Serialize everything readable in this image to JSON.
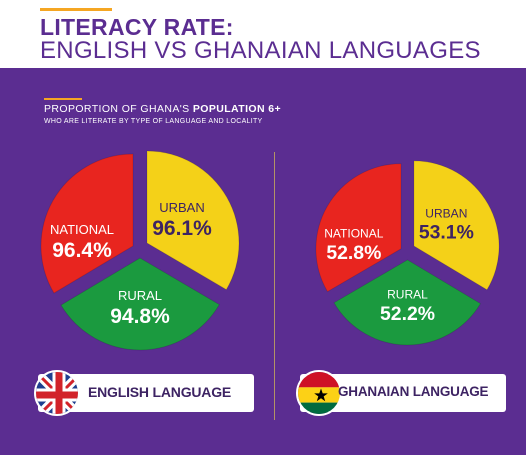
{
  "header": {
    "title_line1": "LITERACY RATE:",
    "title_line2": "ENGLISH VS GHANAIAN LANGUAGES"
  },
  "subtitle": {
    "line1_prefix": "PROPORTION OF GHANA'S",
    "line1_bold": "POPULATION 6+",
    "line2": "WHO ARE LITERATE BY TYPE OF LANGUAGE AND LOCALITY"
  },
  "colors": {
    "background": "#5b2d91",
    "header_text": "#5b2d91",
    "urban": "#f4d118",
    "national": "#e8251f",
    "rural": "#1b9a3f",
    "accent": "#f5a623"
  },
  "icons": [
    "uk-flag-icon",
    "ghana-flag-icon"
  ],
  "chart_data": [
    {
      "type": "pie",
      "title": "ENGLISH LANGUAGE",
      "slices": [
        {
          "label": "URBAN",
          "value": 96.1,
          "display": "96.1%",
          "color": "#f4d118"
        },
        {
          "label": "RURAL",
          "value": 94.8,
          "display": "94.8%",
          "color": "#1b9a3f"
        },
        {
          "label": "NATIONAL",
          "value": 96.4,
          "display": "96.4%",
          "color": "#e8251f"
        }
      ]
    },
    {
      "type": "pie",
      "title": "GHANAIAN LANGUAGE",
      "slices": [
        {
          "label": "URBAN",
          "value": 53.1,
          "display": "53.1%",
          "color": "#f4d118"
        },
        {
          "label": "RURAL",
          "value": 52.2,
          "display": "52.2%",
          "color": "#1b9a3f"
        },
        {
          "label": "NATIONAL",
          "value": 52.8,
          "display": "52.8%",
          "color": "#e8251f"
        }
      ]
    }
  ]
}
